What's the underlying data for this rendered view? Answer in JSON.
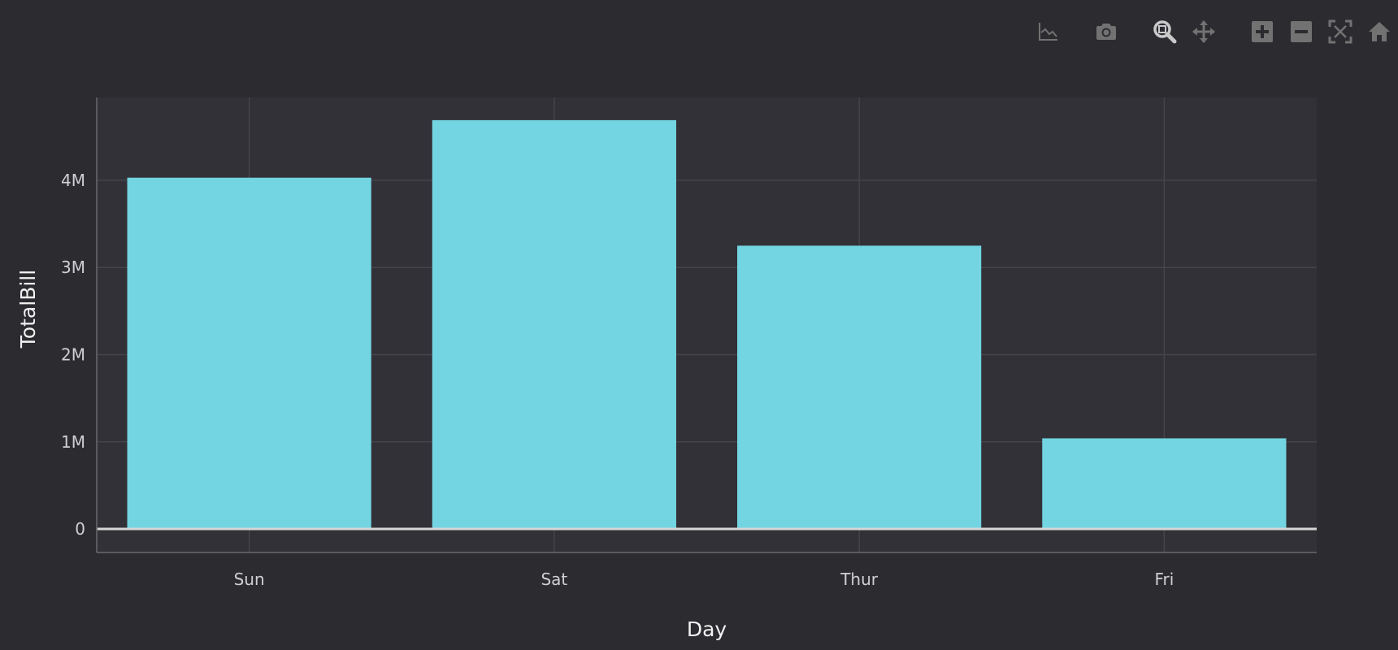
{
  "colors": {
    "background": "#2c2b30",
    "plot_background": "#323137",
    "bar": "#73d5e2",
    "grid": "#45444a",
    "zero_line": "#d6d6d6",
    "tick_text": "#cfcfd4",
    "axis_title": "#f2f2f2",
    "modebar_icon": "#727272",
    "modebar_icon_active": "#c9c9c9"
  },
  "modebar": {
    "buttons": [
      {
        "icon": "line-chart-icon",
        "active": false
      },
      {
        "icon": "camera-icon",
        "active": false
      },
      {
        "icon": "zoom-icon",
        "active": true
      },
      {
        "icon": "pan-icon",
        "active": false
      },
      {
        "icon": "zoom-in-icon",
        "active": false
      },
      {
        "icon": "zoom-out-icon",
        "active": false
      },
      {
        "icon": "autoscale-icon",
        "active": false
      },
      {
        "icon": "home-icon",
        "active": false
      }
    ]
  },
  "chart_data": {
    "type": "bar",
    "title": "",
    "xlabel": "Day",
    "ylabel": "TotalBill",
    "categories": [
      "Sun",
      "Sat",
      "Thur",
      "Fri"
    ],
    "values": [
      4030000,
      4690000,
      3250000,
      1040000
    ],
    "ylim": [
      -270000,
      4950000
    ],
    "yticks": [
      0,
      1000000,
      2000000,
      3000000,
      4000000
    ],
    "ytick_labels": [
      "0",
      "1M",
      "2M",
      "3M",
      "4M"
    ],
    "grid": true,
    "legend": "none"
  }
}
